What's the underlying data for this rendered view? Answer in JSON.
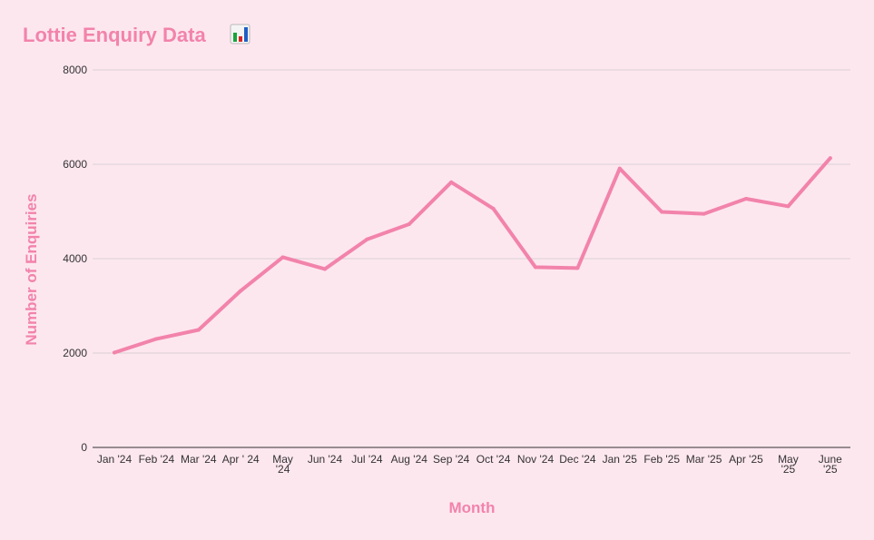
{
  "chart_data": {
    "type": "line",
    "title": "Lottie Enquiry Data",
    "title_emoji_icon": "bar-chart-emoji-icon",
    "xlabel": "Month",
    "ylabel": "Number of Enquiries",
    "categories": [
      [
        "Jan '24"
      ],
      [
        "Feb '24"
      ],
      [
        "Mar '24"
      ],
      [
        "Apr ' 24"
      ],
      [
        "May",
        "'24"
      ],
      [
        "Jun '24"
      ],
      [
        "Jul '24"
      ],
      [
        "Aug '24"
      ],
      [
        "Sep '24"
      ],
      [
        "Oct '24"
      ],
      [
        "Nov '24"
      ],
      [
        "Dec '24"
      ],
      [
        "Jan '25"
      ],
      [
        "Feb '25"
      ],
      [
        "Mar '25"
      ],
      [
        "Apr '25"
      ],
      [
        "May",
        "'25"
      ],
      [
        "June",
        "'25"
      ]
    ],
    "series": [
      {
        "values": [
          2010,
          2300,
          2490,
          3320,
          4030,
          3780,
          4410,
          4730,
          5620,
          5060,
          3820,
          3800,
          5910,
          4990,
          4950,
          5270,
          5110,
          6130
        ]
      }
    ],
    "ylim": [
      0,
      8000
    ],
    "yticks": [
      "0",
      "2000",
      "4000",
      "6000",
      "8000"
    ],
    "grid": true,
    "legend": "none",
    "colors": {
      "line": "#f283aa",
      "title": "#f283aa",
      "axis_title": "#f283aa",
      "grid": "#d9d2d5",
      "axis": "#333333",
      "background": "#fde7ef"
    }
  }
}
